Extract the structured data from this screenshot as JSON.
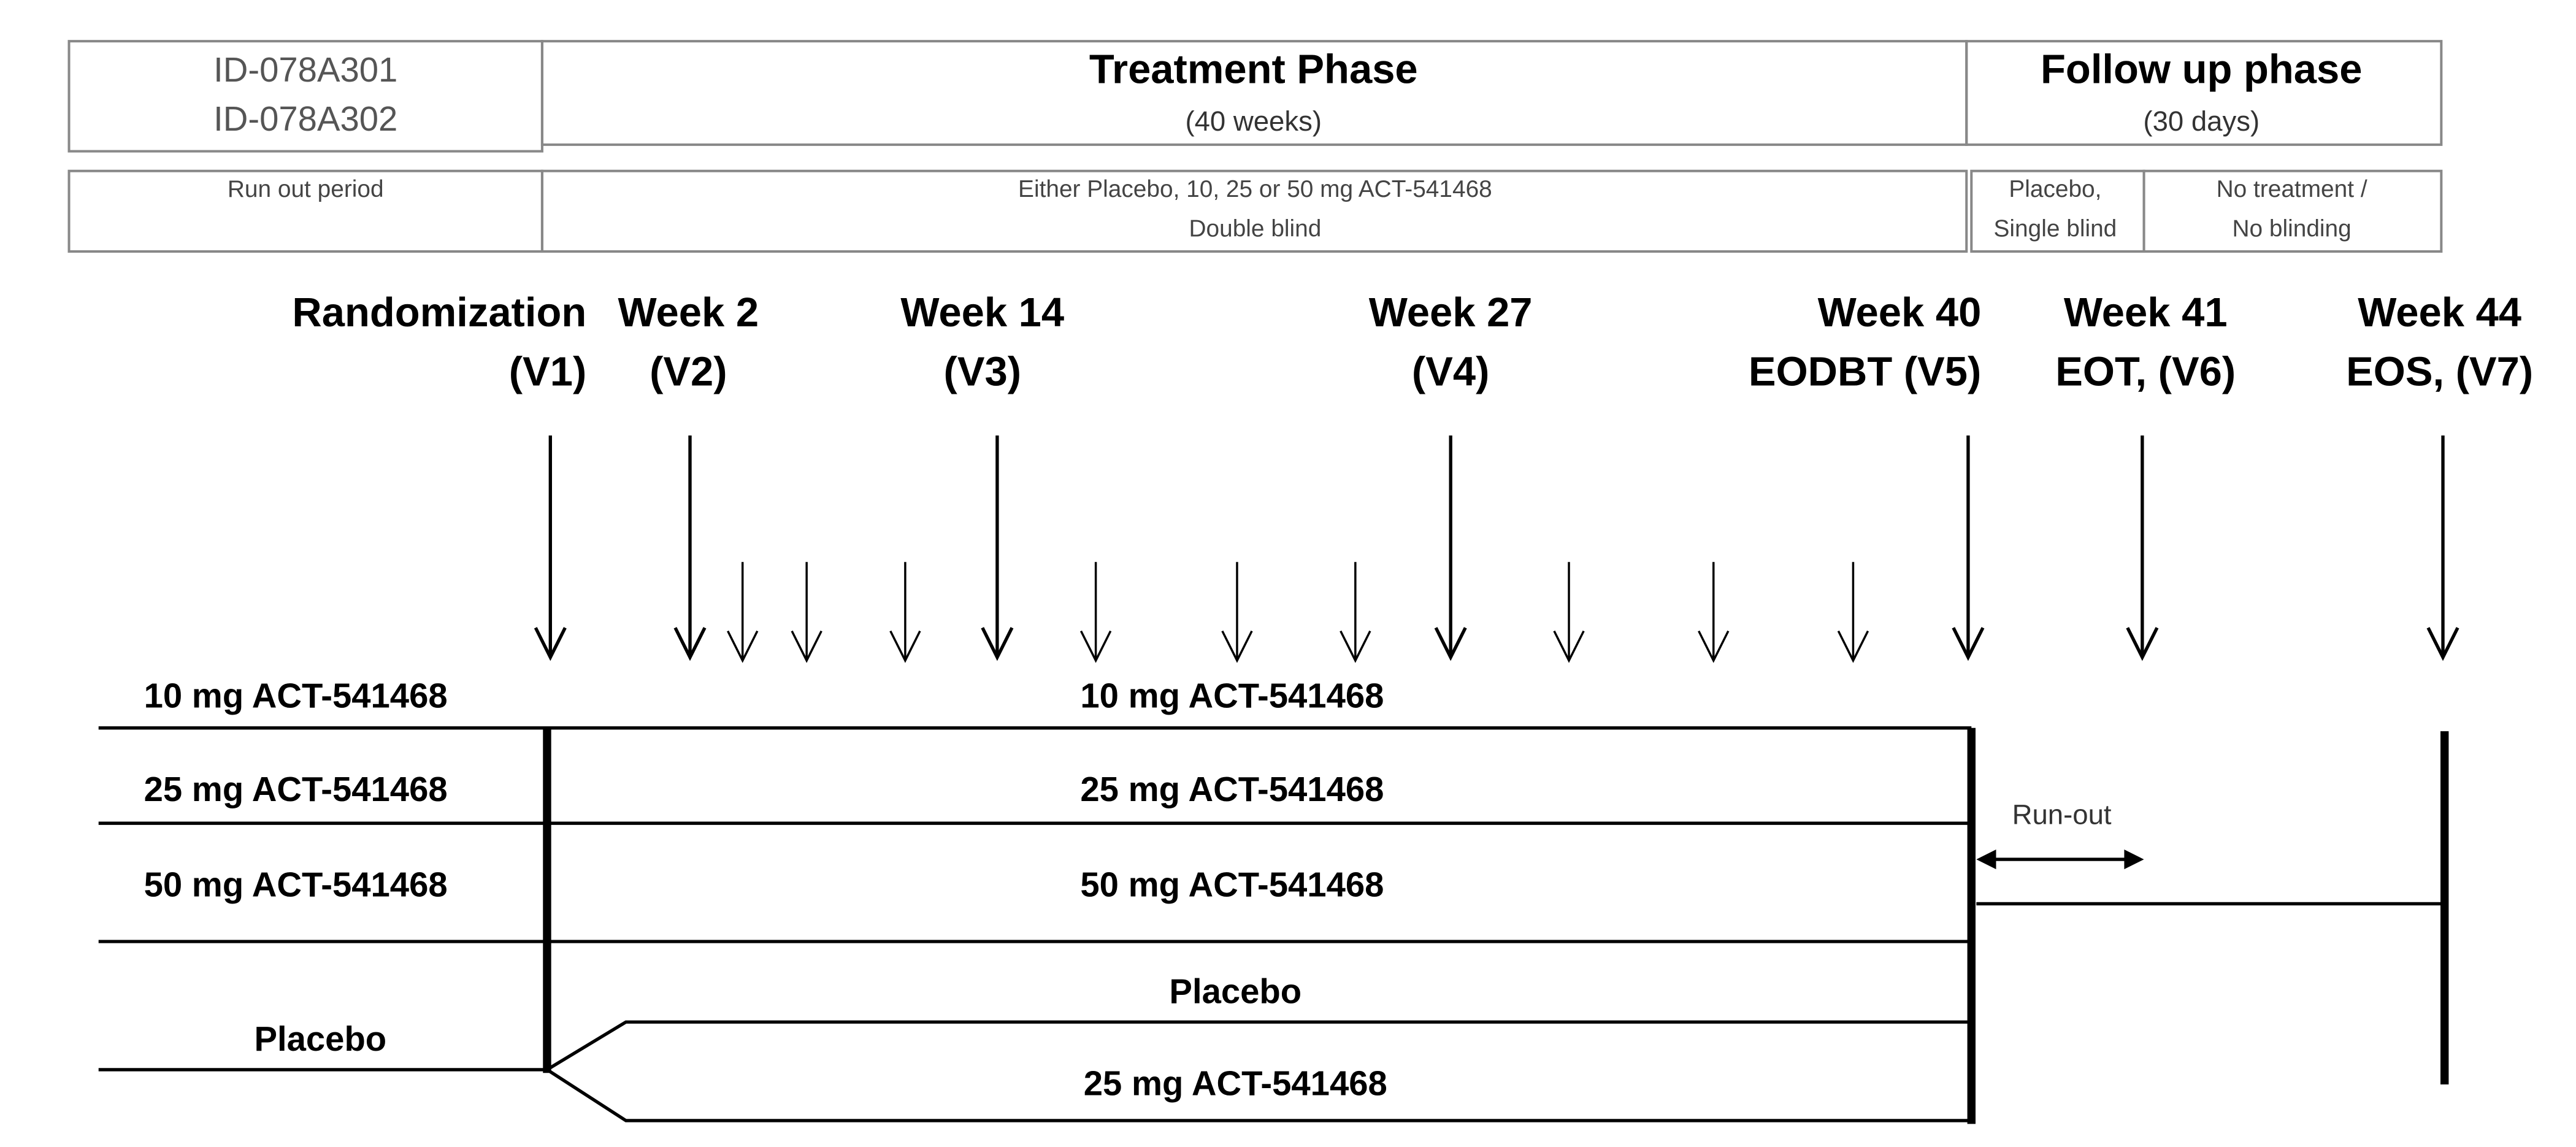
{
  "header": {
    "study_ids": [
      "ID-078A301",
      "ID-078A302"
    ],
    "treatment_phase": {
      "title": "Treatment Phase",
      "duration": "(40 weeks)"
    },
    "follow_up_phase": {
      "title": "Follow up phase",
      "duration": "(30 days)"
    }
  },
  "periods": {
    "run_out": "Run out period",
    "treatment": [
      "Either Placebo, 10, 25 or 50 mg ACT-541468",
      "Double  blind"
    ],
    "placebo": [
      "Placebo,",
      "Single blind"
    ],
    "no_treatment": [
      "No treatment /",
      "No blinding"
    ]
  },
  "visits": [
    [
      "Randomization",
      "(V1)"
    ],
    [
      "Week 2",
      "(V2)"
    ],
    [
      "Week 14",
      "(V3)"
    ],
    [
      "Week 27",
      "(V4)"
    ],
    [
      "Week 40",
      "EODBT (V5)"
    ],
    [
      "Week 41",
      "EOT, (V6)"
    ],
    [
      "Week 44",
      "EOS, (V7)"
    ]
  ],
  "arms": {
    "left": [
      "10 mg ACT-541468",
      "25 mg ACT-541468",
      "50 mg ACT-541468",
      "Placebo"
    ],
    "center": [
      "10 mg ACT-541468",
      "25 mg ACT-541468",
      "50 mg ACT-541468",
      "Placebo",
      "25 mg ACT-541468"
    ],
    "run_out": "Run-out"
  }
}
